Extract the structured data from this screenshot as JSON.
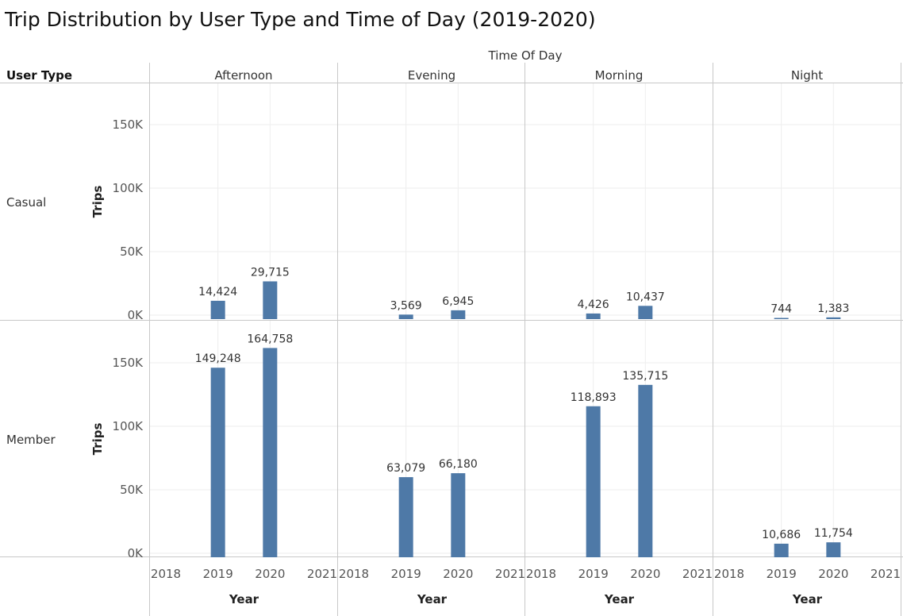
{
  "chart_data": {
    "type": "bar",
    "title": "Trip Distribution by User Type and Time of Day (2019-2020)",
    "column_header": "Time Of Day",
    "row_header": "User Type",
    "columns": [
      "Afternoon",
      "Evening",
      "Morning",
      "Night"
    ],
    "rows": [
      "Casual",
      "Member"
    ],
    "ylabel": "Trips",
    "xlabel": "Year",
    "x_ticks": [
      "2018",
      "2019",
      "2020",
      "2021"
    ],
    "y_ticks": [
      "0K",
      "50K",
      "100K",
      "150K"
    ],
    "ylim": [
      0,
      180000
    ],
    "xlim": [
      2018,
      2021
    ],
    "bar_color": "#4e79a7",
    "series": [
      {
        "user_type": "Casual",
        "time_of_day": "Afternoon",
        "x": [
          2019,
          2020
        ],
        "values": [
          14424,
          29715
        ],
        "labels": [
          "14,424",
          "29,715"
        ]
      },
      {
        "user_type": "Casual",
        "time_of_day": "Evening",
        "x": [
          2019,
          2020
        ],
        "values": [
          3569,
          6945
        ],
        "labels": [
          "3,569",
          "6,945"
        ]
      },
      {
        "user_type": "Casual",
        "time_of_day": "Morning",
        "x": [
          2019,
          2020
        ],
        "values": [
          4426,
          10437
        ],
        "labels": [
          "4,426",
          "10,437"
        ]
      },
      {
        "user_type": "Casual",
        "time_of_day": "Night",
        "x": [
          2019,
          2020
        ],
        "values": [
          744,
          1383
        ],
        "labels": [
          "744",
          "1,383"
        ]
      },
      {
        "user_type": "Member",
        "time_of_day": "Afternoon",
        "x": [
          2019,
          2020
        ],
        "values": [
          149248,
          164758
        ],
        "labels": [
          "149,248",
          "164,758"
        ]
      },
      {
        "user_type": "Member",
        "time_of_day": "Evening",
        "x": [
          2019,
          2020
        ],
        "values": [
          63079,
          66180
        ],
        "labels": [
          "63,079",
          "66,180"
        ]
      },
      {
        "user_type": "Member",
        "time_of_day": "Morning",
        "x": [
          2019,
          2020
        ],
        "values": [
          118893,
          135715
        ],
        "labels": [
          "118,893",
          "135,715"
        ]
      },
      {
        "user_type": "Member",
        "time_of_day": "Night",
        "x": [
          2019,
          2020
        ],
        "values": [
          10686,
          11754
        ],
        "labels": [
          "10,686",
          "11,754"
        ]
      }
    ]
  }
}
